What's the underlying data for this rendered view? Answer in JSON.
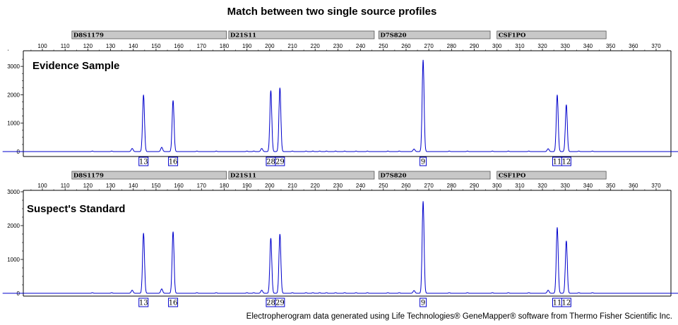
{
  "title": "Match between two single source profiles",
  "footer": "Electropherogram data generated using Life Technologies® GeneMapper® software from Thermo Fisher Scientific Inc.",
  "colors": {
    "trace": "#0000cc",
    "locus_bar": "#c8c8c8",
    "allele_box": "#0000cc"
  },
  "chart_data": [
    {
      "type": "line",
      "title": "Evidence Sample",
      "xlim": [
        82,
        383
      ],
      "ylim": [
        0,
        3500
      ],
      "x_ticks": [
        100,
        110,
        120,
        130,
        140,
        150,
        160,
        170,
        180,
        190,
        200,
        210,
        220,
        230,
        240,
        250,
        260,
        270,
        280,
        290,
        300,
        310,
        320,
        330,
        340,
        350,
        360,
        370
      ],
      "y_ticks": [
        0,
        1000,
        2000,
        3000
      ],
      "grid": false,
      "loci": [
        {
          "name": "D8S1179",
          "start": 113,
          "end": 181
        },
        {
          "name": "D21S11",
          "start": 182,
          "end": 246
        },
        {
          "name": "D7S820",
          "start": 248,
          "end": 297
        },
        {
          "name": "CSF1PO",
          "start": 300,
          "end": 348
        }
      ],
      "peaks": [
        {
          "x": 139.5,
          "height": 110
        },
        {
          "x": 144.5,
          "height": 2000,
          "allele": "13"
        },
        {
          "x": 152.5,
          "height": 150
        },
        {
          "x": 157.5,
          "height": 1800,
          "allele": "16"
        },
        {
          "x": 196.5,
          "height": 110
        },
        {
          "x": 200.5,
          "height": 2150,
          "allele": "28"
        },
        {
          "x": 204.5,
          "height": 2250,
          "allele": "29"
        },
        {
          "x": 263.5,
          "height": 90
        },
        {
          "x": 267.5,
          "height": 3230,
          "allele": "9"
        },
        {
          "x": 322.5,
          "height": 100
        },
        {
          "x": 326.5,
          "height": 2000,
          "allele": "11"
        },
        {
          "x": 330.5,
          "height": 1650,
          "allele": "12"
        }
      ]
    },
    {
      "type": "line",
      "title": "Suspect's Standard",
      "xlim": [
        82,
        383
      ],
      "ylim": [
        0,
        3000
      ],
      "x_ticks": [
        100,
        110,
        120,
        130,
        140,
        150,
        160,
        170,
        180,
        190,
        200,
        210,
        220,
        230,
        240,
        250,
        260,
        270,
        280,
        290,
        300,
        310,
        320,
        330,
        340,
        350,
        360,
        370
      ],
      "y_ticks": [
        0,
        1000,
        2000,
        3000
      ],
      "grid": false,
      "loci": [
        {
          "name": "D8S1179",
          "start": 113,
          "end": 181
        },
        {
          "name": "D21S11",
          "start": 182,
          "end": 246
        },
        {
          "name": "D7S820",
          "start": 248,
          "end": 297
        },
        {
          "name": "CSF1PO",
          "start": 300,
          "end": 348
        }
      ],
      "peaks": [
        {
          "x": 139.5,
          "height": 90
        },
        {
          "x": 144.5,
          "height": 1780,
          "allele": "13"
        },
        {
          "x": 152.5,
          "height": 130
        },
        {
          "x": 157.5,
          "height": 1820,
          "allele": "16"
        },
        {
          "x": 196.5,
          "height": 90
        },
        {
          "x": 200.5,
          "height": 1630,
          "allele": "28"
        },
        {
          "x": 204.5,
          "height": 1750,
          "allele": "29"
        },
        {
          "x": 263.5,
          "height": 80
        },
        {
          "x": 267.5,
          "height": 2720,
          "allele": "9"
        },
        {
          "x": 322.5,
          "height": 90
        },
        {
          "x": 326.5,
          "height": 1950,
          "allele": "11"
        },
        {
          "x": 330.5,
          "height": 1550,
          "allele": "12"
        }
      ]
    }
  ]
}
